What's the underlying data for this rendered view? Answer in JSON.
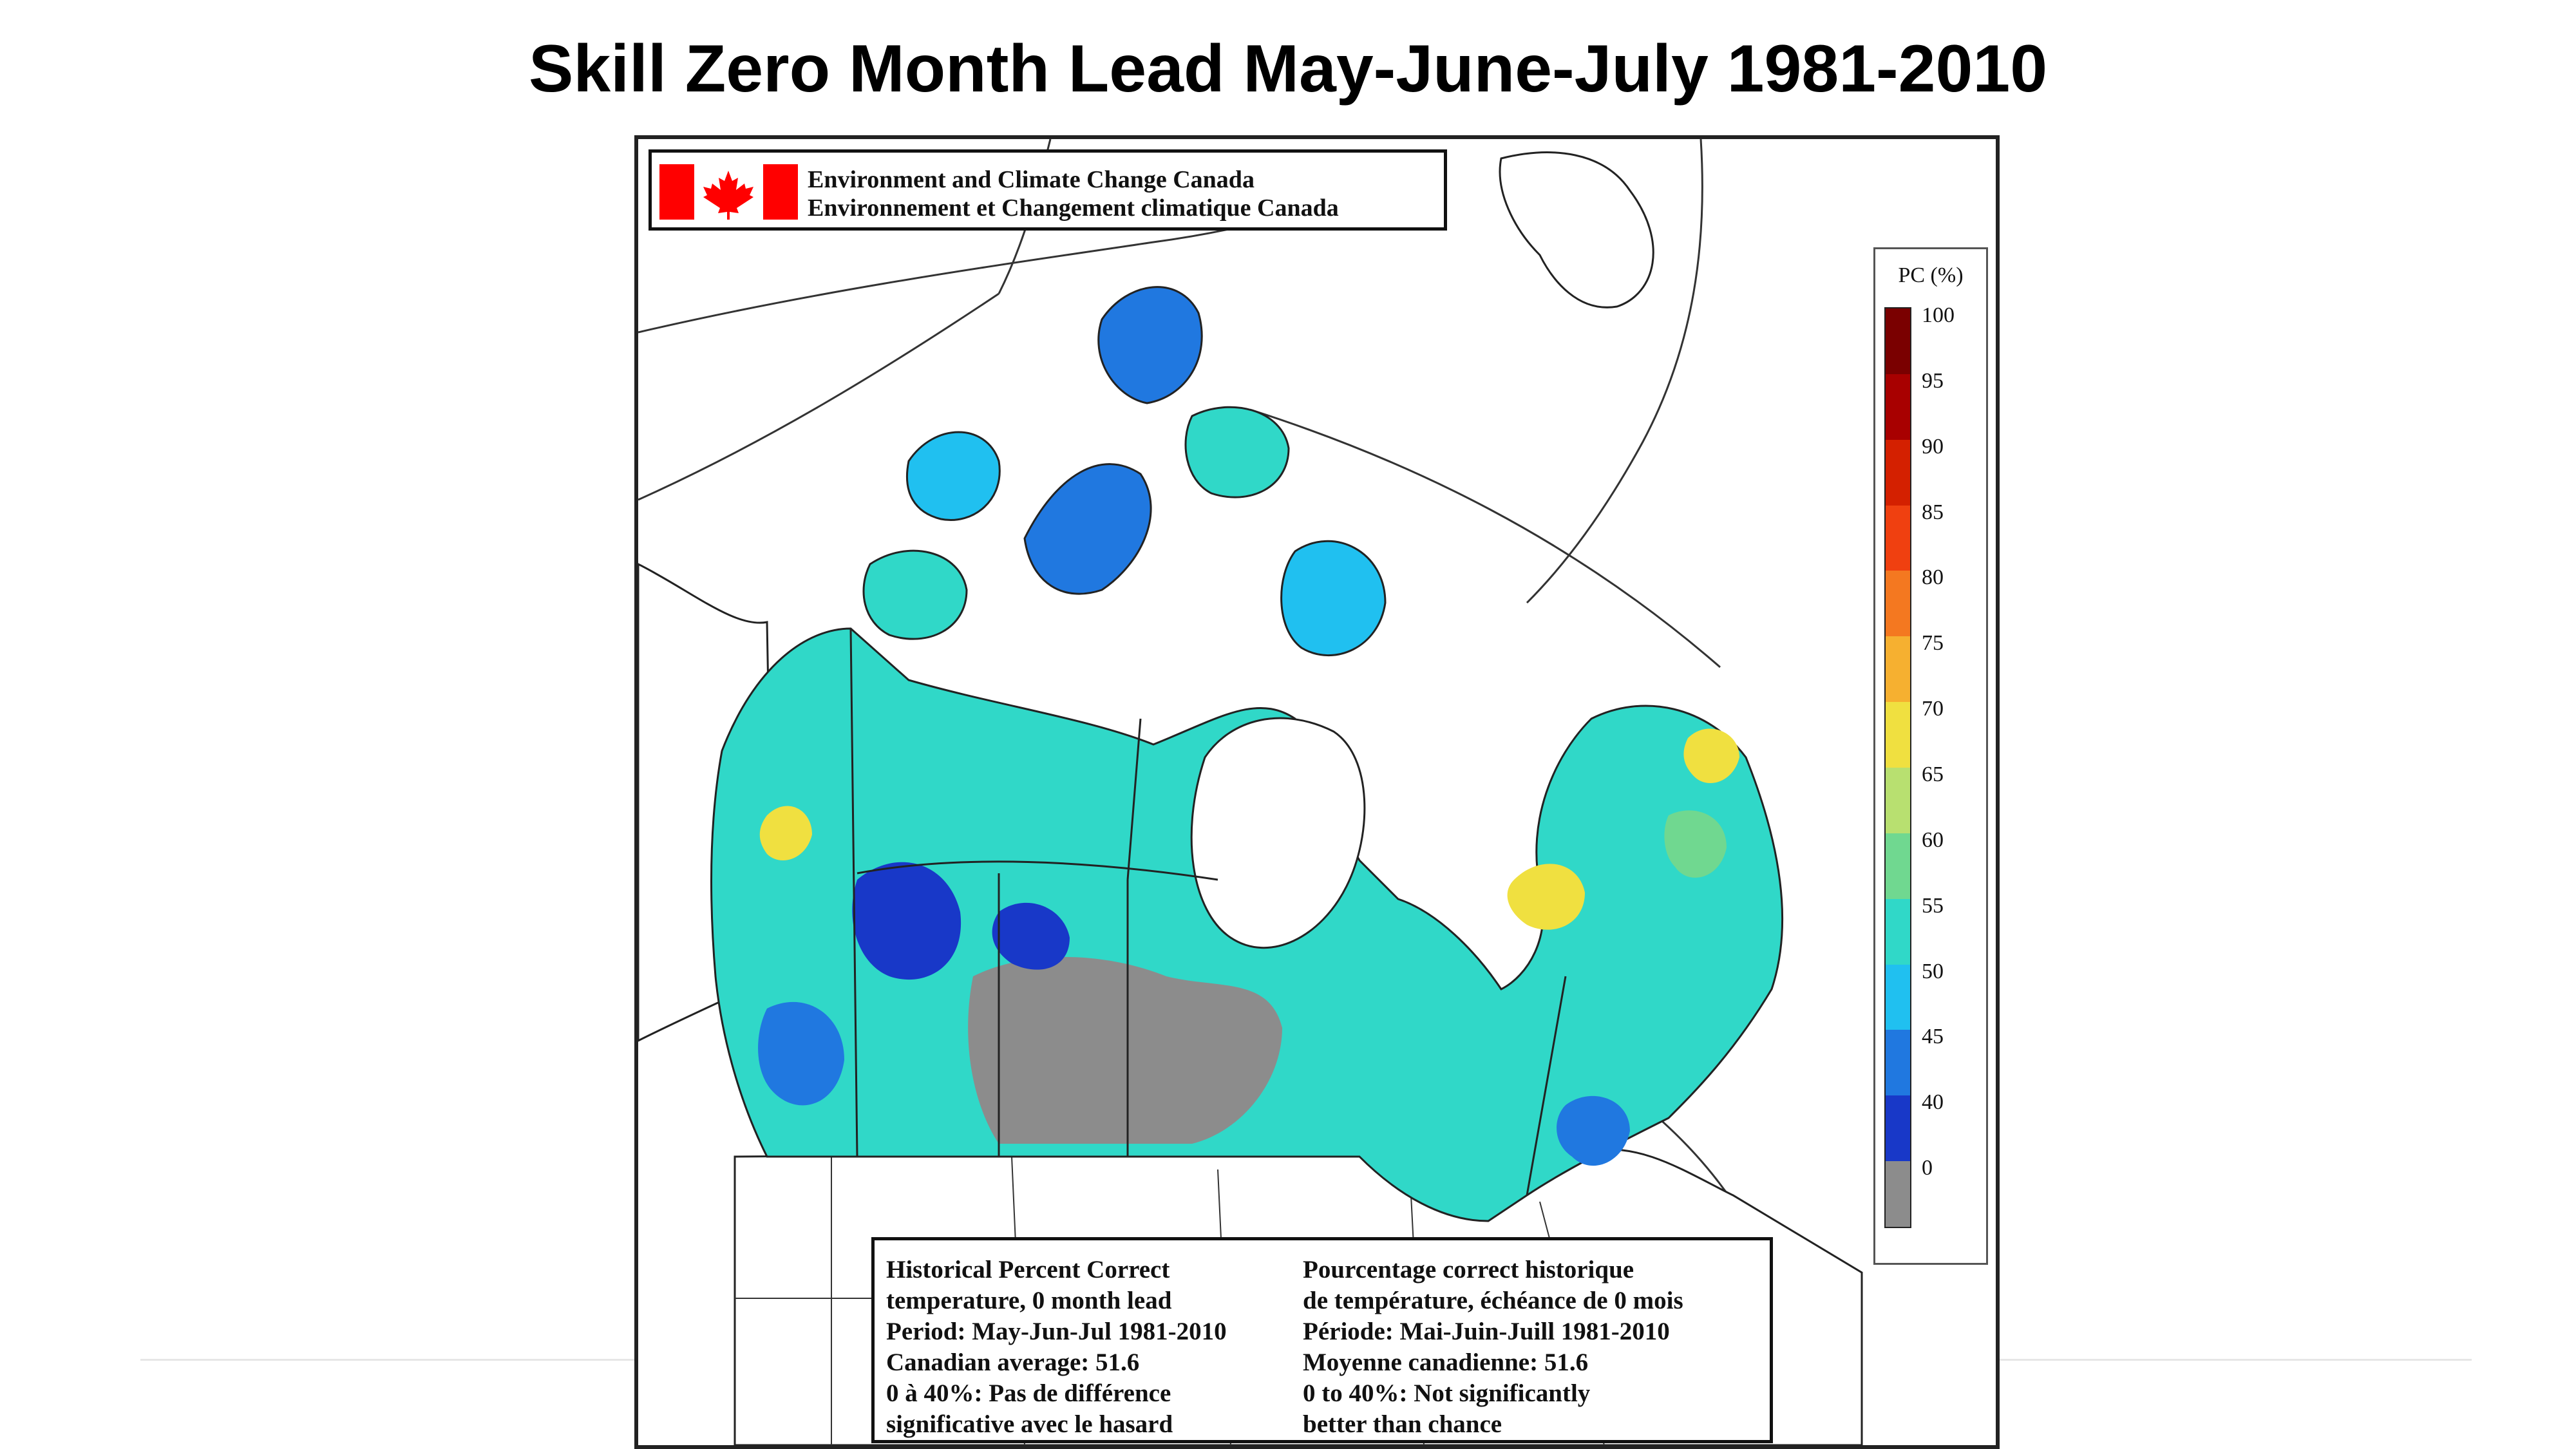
{
  "title": "Skill Zero Month Lead May-June-July 1981-2010",
  "agency": {
    "line1": "Environment and Climate Change Canada",
    "line2": "Environnement et Changement climatique Canada",
    "flag_icon": "canada-flag-icon"
  },
  "legend": {
    "title": "PC (%)",
    "levels": [
      {
        "label": "100",
        "color": "#7a0000"
      },
      {
        "label": "95",
        "color": "#a80000"
      },
      {
        "label": "90",
        "color": "#d42000"
      },
      {
        "label": "85",
        "color": "#f04010"
      },
      {
        "label": "80",
        "color": "#f47820"
      },
      {
        "label": "75",
        "color": "#f6b030"
      },
      {
        "label": "70",
        "color": "#f0e040"
      },
      {
        "label": "65",
        "color": "#b8e070"
      },
      {
        "label": "60",
        "color": "#70d890"
      },
      {
        "label": "55",
        "color": "#30d8c8"
      },
      {
        "label": "50",
        "color": "#20c0f0"
      },
      {
        "label": "45",
        "color": "#2078e0"
      },
      {
        "label": "40",
        "color": "#1838c8"
      },
      {
        "label": "0",
        "color": "#8c8c8c"
      }
    ]
  },
  "info": {
    "english": [
      "Historical Percent Correct",
      "temperature, 0 month lead",
      "Period: May-Jun-Jul 1981-2010",
      "Canadian average: 51.6",
      "0 à 40%: Pas de différence",
      "significative avec le hasard"
    ],
    "french": [
      "Pourcentage correct historique",
      "de température, échéance de 0 mois",
      "Période: Mai-Juin-Juill 1981-2010",
      "Moyenne canadienne: 51.6",
      "0 to 40%: Not significantly",
      "better than chance"
    ]
  }
}
